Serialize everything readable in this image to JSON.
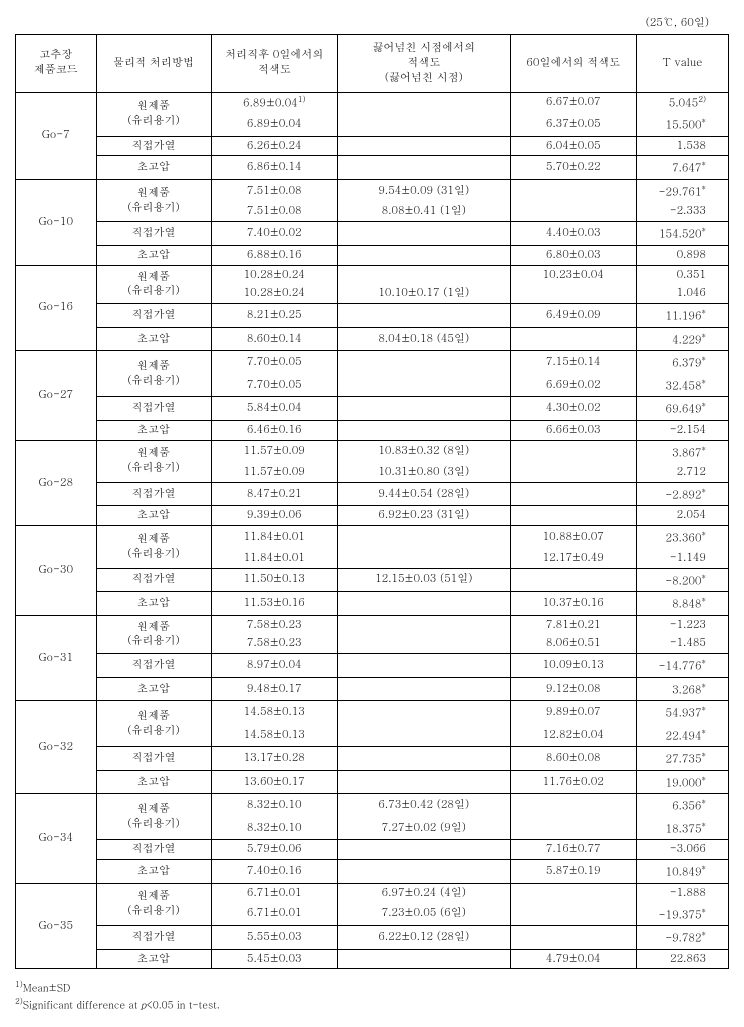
{
  "condition": "(25℃, 60일)",
  "headers": {
    "code": "고추장\n제품코드",
    "method": "물리적 처리방법",
    "v0": "처리직후 0일에서의\n적색도",
    "vover": "끓어넘친 시점에서의\n적색도\n(끓어넘친 시점)",
    "v60": "60일에서의 적색도",
    "t": "T value"
  },
  "footnotes": {
    "f1": "Mean±SD",
    "f2_pre": "Significant difference at ",
    "f2_p": "p",
    "f2_post": "<0.05 in t-test."
  },
  "method_labels": {
    "raw1": "원제품",
    "raw2": "(유리용기)",
    "heat": "직접가열",
    "hp": "초고압"
  },
  "groups": [
    {
      "code": "Go-7",
      "rows": [
        {
          "v0": "6.89±0.04",
          "v0_sup": "1)",
          "vover": "",
          "v60": "6.67±0.07",
          "t": "5.045",
          "t_sup": "2)"
        },
        {
          "v0": "6.89±0.04",
          "vover": "",
          "v60": "6.37±0.05",
          "t": "15.500",
          "t_star": true
        },
        {
          "v0": "6.26±0.24",
          "vover": "",
          "v60": "6.04±0.05",
          "t": "1.538"
        },
        {
          "v0": "6.86±0.14",
          "vover": "",
          "v60": "5.70±0.22",
          "t": "7.647",
          "t_star": true
        }
      ]
    },
    {
      "code": "Go-10",
      "rows": [
        {
          "v0": "7.51±0.08",
          "vover": "9.54±0.09 (31일)",
          "v60": "",
          "t": "-29.761",
          "t_star": true
        },
        {
          "v0": "7.51±0.08",
          "vover": "8.08±0.41 (1일)",
          "v60": "",
          "t": "-2.333"
        },
        {
          "v0": "7.40±0.02",
          "vover": "",
          "v60": "4.40±0.03",
          "t": "154.520",
          "t_star": true
        },
        {
          "v0": "6.88±0.16",
          "vover": "",
          "v60": "6.80±0.03",
          "t": "0.898"
        }
      ]
    },
    {
      "code": "Go-16",
      "rows": [
        {
          "v0": "10.28±0.24",
          "vover": "",
          "v60": "10.23±0.04",
          "t": "0.351"
        },
        {
          "v0": "10.28±0.24",
          "vover": "10.10±0.17 (1일)",
          "v60": "",
          "t": "1.046"
        },
        {
          "v0": "8.21±0.25",
          "vover": "",
          "v60": "6.49±0.09",
          "t": "11.196",
          "t_star": true
        },
        {
          "v0": "8.60±0.14",
          "vover": "8.04±0.18 (45일)",
          "v60": "",
          "t": "4.229",
          "t_star": true
        }
      ]
    },
    {
      "code": "Go-27",
      "rows": [
        {
          "v0": "7.70±0.05",
          "vover": "",
          "v60": "7.15±0.14",
          "t": "6.379",
          "t_star": true
        },
        {
          "v0": "7.70±0.05",
          "vover": "",
          "v60": "6.69±0.02",
          "t": "32.458",
          "t_star": true
        },
        {
          "v0": "5.84±0.04",
          "vover": "",
          "v60": "4.30±0.02",
          "t": "69.649",
          "t_star": true
        },
        {
          "v0": "6.46±0.16",
          "vover": "",
          "v60": "6.66±0.03",
          "t": "-2.154"
        }
      ]
    },
    {
      "code": "Go-28",
      "rows": [
        {
          "v0": "11.57±0.09",
          "vover": "10.83±0.32 (8일)",
          "v60": "",
          "t": "3.867",
          "t_star": true
        },
        {
          "v0": "11.57±0.09",
          "vover": "10.31±0.80 (3일)",
          "v60": "",
          "t": "2.712"
        },
        {
          "v0": "8.47±0.21",
          "vover": "9.44±0.54 (28일)",
          "v60": "",
          "t": "-2.892",
          "t_star": true
        },
        {
          "v0": "9.39±0.06",
          "vover": "6.92±0.23 (31일)",
          "v60": "",
          "t": "2.054"
        }
      ]
    },
    {
      "code": "Go-30",
      "rows": [
        {
          "v0": "11.84±0.01",
          "vover": "",
          "v60": "10.88±0.07",
          "t": "23.360",
          "t_star": true
        },
        {
          "v0": "11.84±0.01",
          "vover": "",
          "v60": "12.17±0.49",
          "t": "-1.149"
        },
        {
          "v0": "11.50±0.13",
          "vover": "12.15±0.03 (51일)",
          "v60": "",
          "t": "-8.200",
          "t_star": true
        },
        {
          "v0": "11.53±0.16",
          "vover": "",
          "v60": "10.37±0.16",
          "t": "8.848",
          "t_star": true
        }
      ]
    },
    {
      "code": "Go-31",
      "rows": [
        {
          "v0": "7.58±0.23",
          "vover": "",
          "v60": "7.81±0.21",
          "t": "-1.223"
        },
        {
          "v0": "7.58±0.23",
          "vover": "",
          "v60": "8.06±0.51",
          "t": "-1.485"
        },
        {
          "v0": "8.97±0.04",
          "vover": "",
          "v60": "10.09±0.13",
          "t": "-14.776",
          "t_star": true
        },
        {
          "v0": "9.48±0.17",
          "vover": "",
          "v60": "9.12±0.08",
          "t": "3.268",
          "t_star": true
        }
      ]
    },
    {
      "code": "Go-32",
      "rows": [
        {
          "v0": "14.58±0.13",
          "vover": "",
          "v60": "9.89±0.07",
          "t": "54.937",
          "t_star": true
        },
        {
          "v0": "14.58±0.13",
          "vover": "",
          "v60": "12.82±0.04",
          "t": "22.494",
          "t_star": true
        },
        {
          "v0": "13.17±0.28",
          "vover": "",
          "v60": "8.60±0.08",
          "t": "27.735",
          "t_star": true
        },
        {
          "v0": "13.60±0.17",
          "vover": "",
          "v60": "11.76±0.02",
          "t": "19.000",
          "t_star": true
        }
      ]
    },
    {
      "code": "Go-34",
      "rows": [
        {
          "v0": "8.32±0.10",
          "vover": "6.73±0.42 (28일)",
          "v60": "",
          "t": "6.356",
          "t_star": true
        },
        {
          "v0": "8.32±0.10",
          "vover": "7.27±0.02 (9일)",
          "v60": "",
          "t": "18.375",
          "t_star": true
        },
        {
          "v0": "5.79±0.06",
          "vover": "",
          "v60": "7.16±0.77",
          "t": "-3.066"
        },
        {
          "v0": "7.40±0.16",
          "vover": "",
          "v60": "5.87±0.19",
          "t": "10.849",
          "t_star": true
        }
      ]
    },
    {
      "code": "Go-35",
      "rows": [
        {
          "v0": "6.71±0.01",
          "vover": "6.97±0.24 (4일)",
          "v60": "",
          "t": "-1.888"
        },
        {
          "v0": "6.71±0.01",
          "vover": "7.23±0.05 (6일)",
          "v60": "",
          "t": "-19.375",
          "t_star": true
        },
        {
          "v0": "5.55±0.03",
          "vover": "6.22±0.12 (28일)",
          "v60": "",
          "t": "-9.782",
          "t_star": true
        },
        {
          "v0": "5.45±0.03",
          "vover": "",
          "v60": "4.79±0.04",
          "t": "22.863"
        }
      ]
    }
  ]
}
